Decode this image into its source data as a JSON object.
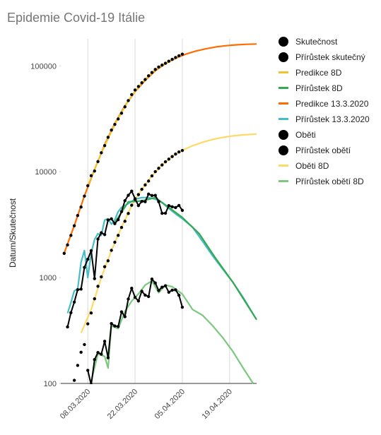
{
  "chart_data": {
    "type": "line",
    "title": "Epidemie Covid-19 Itálie",
    "y_label": "Datum/Skutečnost",
    "log_scale": true,
    "x_grid": true,
    "xlim": [
      "29.02.2020",
      "27.04.2020"
    ],
    "xticks": [
      "08.03.2020",
      "22.03.2020",
      "05.04.2020",
      "19.04.2020"
    ],
    "ylim": [
      100,
      180000
    ],
    "yticks": [
      100,
      1000,
      10000,
      100000
    ],
    "series": [
      {
        "name": "Skutečnost",
        "color": "#000000",
        "marker": true,
        "line": false,
        "x": [
          "01.03.2020",
          "02.03.2020",
          "03.03.2020",
          "04.03.2020",
          "05.03.2020",
          "06.03.2020",
          "07.03.2020",
          "08.03.2020",
          "09.03.2020",
          "10.03.2020",
          "11.03.2020",
          "12.03.2020",
          "13.03.2020",
          "14.03.2020",
          "15.03.2020",
          "16.03.2020",
          "17.03.2020",
          "18.03.2020",
          "19.03.2020",
          "20.03.2020",
          "21.03.2020",
          "22.03.2020",
          "23.03.2020",
          "24.03.2020",
          "25.03.2020",
          "26.03.2020",
          "27.03.2020",
          "28.03.2020",
          "29.03.2020",
          "30.03.2020",
          "31.03.2020",
          "01.04.2020",
          "02.04.2020",
          "03.04.2020",
          "04.04.2020",
          "05.04.2020"
        ],
        "values": [
          1694,
          2036,
          2502,
          3089,
          3858,
          4636,
          5883,
          7375,
          9172,
          10149,
          12462,
          15113,
          17660,
          21157,
          24747,
          27980,
          31506,
          35713,
          41035,
          47021,
          53578,
          59138,
          63927,
          69176,
          74386,
          80539,
          86498,
          92472,
          97689,
          101739,
          105792,
          110574,
          115242,
          119827,
          124632,
          128948
        ]
      },
      {
        "name": "Přírůstek skutečný",
        "color": "#000000",
        "marker": true,
        "line": true,
        "x": [
          "02.03.2020",
          "03.03.2020",
          "04.03.2020",
          "05.03.2020",
          "06.03.2020",
          "07.03.2020",
          "08.03.2020",
          "09.03.2020",
          "10.03.2020",
          "11.03.2020",
          "12.03.2020",
          "13.03.2020",
          "14.03.2020",
          "15.03.2020",
          "16.03.2020",
          "17.03.2020",
          "18.03.2020",
          "19.03.2020",
          "20.03.2020",
          "21.03.2020",
          "22.03.2020",
          "23.03.2020",
          "24.03.2020",
          "25.03.2020",
          "26.03.2020",
          "27.03.2020",
          "28.03.2020",
          "29.03.2020",
          "30.03.2020",
          "31.03.2020",
          "01.04.2020",
          "02.04.2020",
          "03.04.2020",
          "04.04.2020",
          "05.04.2020"
        ],
        "values": [
          342,
          466,
          587,
          769,
          778,
          1247,
          1492,
          1797,
          977,
          2313,
          2651,
          2547,
          3497,
          3590,
          3233,
          3526,
          4207,
          5322,
          5986,
          6557,
          5560,
          4789,
          5249,
          5210,
          6153,
          5959,
          5974,
          5217,
          4050,
          4053,
          4782,
          4668,
          4585,
          4805,
          4316
        ]
      },
      {
        "name": "Predikce 8D",
        "color": "#f1c232",
        "marker": false,
        "line": true,
        "x": [
          "08.03.2020",
          "12.03.2020",
          "16.03.2020",
          "20.03.2020",
          "24.03.2020",
          "28.03.2020",
          "01.04.2020",
          "05.04.2020"
        ],
        "values": [
          7400,
          15000,
          28000,
          47000,
          69000,
          92000,
          110000,
          129000
        ]
      },
      {
        "name": "Přírůstek 8D",
        "color": "#34a853",
        "marker": false,
        "line": true,
        "x": [
          "16.03.2020",
          "20.03.2020",
          "24.03.2020",
          "28.03.2020",
          "01.04.2020",
          "05.04.2020",
          "10.04.2020",
          "15.04.2020",
          "20.04.2020",
          "27.04.2020"
        ],
        "values": [
          3300,
          5200,
          5300,
          5700,
          4600,
          3700,
          2600,
          1500,
          900,
          400
        ]
      },
      {
        "name": "Predikce 13.3.2020",
        "color": "#ff6d01",
        "marker": false,
        "line": true,
        "x": [
          "01.03.2020",
          "04.03.2020",
          "07.03.2020",
          "10.03.2020",
          "13.03.2020",
          "16.03.2020",
          "19.03.2020",
          "22.03.2020",
          "25.03.2020",
          "28.03.2020",
          "31.03.2020",
          "03.04.2020",
          "06.04.2020",
          "09.04.2020",
          "12.04.2020",
          "15.04.2020",
          "18.04.2020",
          "21.04.2020",
          "24.04.2020",
          "27.04.2020"
        ],
        "values": [
          1700,
          3100,
          5900,
          10500,
          18000,
          28500,
          42000,
          57000,
          73000,
          90000,
          105000,
          118000,
          129000,
          138000,
          145000,
          151000,
          155000,
          158000,
          160000,
          161000
        ]
      },
      {
        "name": "Přírůstek 13.3.2020",
        "color": "#46bdc6",
        "marker": false,
        "line": true,
        "x": [
          "02.03.2020",
          "03.03.2020",
          "04.03.2020",
          "05.03.2020",
          "06.03.2020",
          "07.03.2020",
          "08.03.2020",
          "09.03.2020",
          "10.03.2020",
          "11.03.2020",
          "12.03.2020",
          "13.03.2020",
          "14.03.2020",
          "15.03.2020",
          "16.03.2020",
          "17.03.2020",
          "18.03.2020",
          "20.03.2020",
          "22.03.2020",
          "24.03.2020",
          "26.03.2020",
          "28.03.2020",
          "30.03.2020",
          "01.04.2020",
          "03.04.2020",
          "05.04.2020",
          "08.04.2020",
          "11.04.2020",
          "14.04.2020",
          "17.04.2020",
          "20.04.2020",
          "23.04.2020",
          "27.04.2020"
        ],
        "values": [
          460,
          580,
          750,
          780,
          1400,
          1800,
          1000,
          1700,
          2300,
          2600,
          2500,
          3500,
          3600,
          3200,
          3500,
          4200,
          4600,
          5000,
          5500,
          5700,
          5700,
          5500,
          5100,
          4500,
          4000,
          3600,
          3000,
          2200,
          1600,
          1200,
          900,
          650,
          400
        ]
      },
      {
        "name": "Oběti",
        "color": "#000000",
        "marker": true,
        "line": false,
        "x": [
          "04.03.2020",
          "05.03.2020",
          "06.03.2020",
          "07.03.2020",
          "08.03.2020",
          "09.03.2020",
          "10.03.2020",
          "11.03.2020",
          "12.03.2020",
          "13.03.2020",
          "14.03.2020",
          "15.03.2020",
          "16.03.2020",
          "17.03.2020",
          "18.03.2020",
          "19.03.2020",
          "20.03.2020",
          "21.03.2020",
          "22.03.2020",
          "23.03.2020",
          "24.03.2020",
          "25.03.2020",
          "26.03.2020",
          "27.03.2020",
          "28.03.2020",
          "29.03.2020",
          "30.03.2020",
          "31.03.2020",
          "01.04.2020",
          "02.04.2020",
          "03.04.2020",
          "04.04.2020",
          "05.04.2020"
        ],
        "values": [
          107,
          148,
          197,
          233,
          366,
          463,
          631,
          827,
          1016,
          1266,
          1441,
          1809,
          2158,
          2503,
          2978,
          3405,
          4032,
          4825,
          5476,
          6077,
          6820,
          7503,
          8165,
          9134,
          10023,
          10779,
          11591,
          12428,
          13155,
          13915,
          14681,
          15362,
          15887
        ]
      },
      {
        "name": "Přírůstek obětí",
        "color": "#000000",
        "marker": true,
        "line": true,
        "x": [
          "08.03.2020",
          "09.03.2020",
          "10.03.2020",
          "11.03.2020",
          "12.03.2020",
          "13.03.2020",
          "14.03.2020",
          "15.03.2020",
          "16.03.2020",
          "17.03.2020",
          "18.03.2020",
          "19.03.2020",
          "20.03.2020",
          "21.03.2020",
          "22.03.2020",
          "23.03.2020",
          "24.03.2020",
          "25.03.2020",
          "26.03.2020",
          "27.03.2020",
          "28.03.2020",
          "29.03.2020",
          "30.03.2020",
          "31.03.2020",
          "01.04.2020",
          "02.04.2020",
          "03.04.2020",
          "04.04.2020",
          "05.04.2020"
        ],
        "values": [
          133,
          97,
          168,
          196,
          189,
          250,
          175,
          368,
          349,
          345,
          475,
          427,
          627,
          793,
          651,
          601,
          743,
          683,
          662,
          969,
          889,
          756,
          812,
          837,
          727,
          760,
          766,
          681,
          525
        ]
      },
      {
        "name": "Oběti 8D",
        "color": "#ffd966",
        "marker": false,
        "line": true,
        "x": [
          "06.03.2020",
          "09.03.2020",
          "12.03.2020",
          "15.03.2020",
          "18.03.2020",
          "21.03.2020",
          "24.03.2020",
          "27.03.2020",
          "30.03.2020",
          "02.04.2020",
          "05.04.2020",
          "08.04.2020",
          "11.04.2020",
          "14.04.2020",
          "17.04.2020",
          "20.04.2020",
          "23.04.2020",
          "27.04.2020"
        ],
        "values": [
          300,
          500,
          1000,
          1800,
          3000,
          4800,
          6800,
          9100,
          11600,
          13900,
          15900,
          17600,
          19000,
          20200,
          21100,
          21800,
          22300,
          22700
        ]
      },
      {
        "name": "Přírůstek obětí 8D",
        "color": "#7bc87f",
        "marker": false,
        "line": true,
        "x": [
          "09.03.2020",
          "11.03.2020",
          "13.03.2020",
          "14.03.2020",
          "15.03.2020",
          "17.03.2020",
          "19.03.2020",
          "21.03.2020",
          "23.03.2020",
          "25.03.2020",
          "27.03.2020",
          "29.03.2020",
          "31.03.2020",
          "02.04.2020",
          "05.04.2020",
          "08.04.2020",
          "11.04.2020",
          "14.04.2020",
          "17.04.2020",
          "20.04.2020",
          "23.04.2020",
          "26.04.2020"
        ],
        "values": [
          105,
          190,
          180,
          140,
          350,
          330,
          480,
          600,
          700,
          850,
          930,
          720,
          850,
          820,
          700,
          500,
          440,
          350,
          270,
          200,
          140,
          100
        ]
      }
    ]
  }
}
